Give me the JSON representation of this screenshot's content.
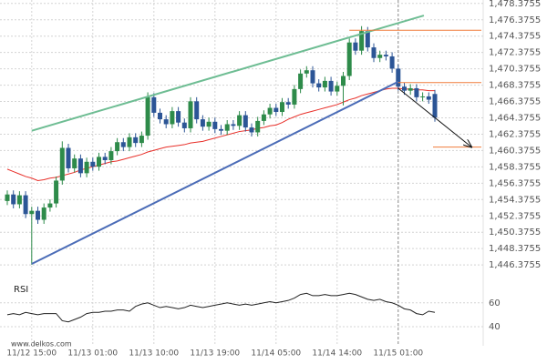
{
  "chart_data": {
    "type": "candlestick",
    "categories": [
      null,
      null,
      null,
      null,
      "11/12 15:00",
      null,
      null,
      null,
      null,
      null,
      null,
      null,
      null,
      null,
      "11/13 01:00",
      null,
      null,
      null,
      null,
      null,
      null,
      null,
      null,
      null,
      "11/13 10:00",
      null,
      null,
      null,
      null,
      null,
      null,
      null,
      null,
      null,
      "11/13 19:00",
      null,
      null,
      null,
      null,
      null,
      null,
      null,
      null,
      null,
      "11/14 05:00",
      null,
      null,
      null,
      null,
      null,
      null,
      null,
      null,
      null,
      "11/14 14:00",
      null,
      null,
      null,
      null,
      null,
      null,
      null,
      null,
      null,
      "11/15 01:00",
      null,
      null,
      null,
      null,
      null,
      null
    ],
    "open": [
      1454.2,
      1455.0,
      1453.8,
      1454.9,
      1452.6,
      1453.0,
      1451.9,
      1453.4,
      1453.9,
      1456.7,
      1460.7,
      1458.2,
      1459.4,
      1457.6,
      1459.0,
      1458.4,
      1459.6,
      1459.2,
      1460.3,
      1461.4,
      1460.8,
      1462.0,
      1461.3,
      1462.2,
      1466.9,
      1465.0,
      1464.2,
      1463.6,
      1465.2,
      1463.8,
      1463.1,
      1466.4,
      1464.2,
      1463.3,
      1463.9,
      1463.0,
      1462.8,
      1463.6,
      1463.4,
      1464.7,
      1463.2,
      1462.6,
      1464.0,
      1464.8,
      1465.6,
      1465.1,
      1466.3,
      1466.0,
      1467.9,
      1469.8,
      1470.2,
      1468.6,
      1468.1,
      1468.9,
      1467.6,
      1468.3,
      1469.5,
      1473.6,
      1472.6,
      1475.0,
      1473.0,
      1471.7,
      1472.1,
      1471.9,
      1470.4,
      1468.2,
      1467.7,
      1468.0,
      1466.9,
      1467.0,
      1467.3
    ],
    "high": [
      1455.5,
      1455.5,
      1455.4,
      1455.4,
      1453.5,
      1453.5,
      1453.9,
      1454.4,
      1457.2,
      1461.5,
      1461.2,
      1459.9,
      1459.9,
      1459.5,
      1459.5,
      1460.1,
      1460.1,
      1460.8,
      1461.9,
      1461.9,
      1462.5,
      1462.5,
      1462.7,
      1467.5,
      1467.4,
      1465.5,
      1464.7,
      1465.7,
      1465.7,
      1464.3,
      1466.9,
      1466.9,
      1464.7,
      1464.4,
      1464.4,
      1463.5,
      1464.1,
      1464.1,
      1465.2,
      1465.2,
      1463.7,
      1464.5,
      1465.3,
      1466.1,
      1466.1,
      1466.8,
      1466.8,
      1468.4,
      1470.3,
      1470.7,
      1470.7,
      1469.1,
      1469.4,
      1469.4,
      1468.8,
      1470.0,
      1474.1,
      1474.1,
      1475.6,
      1475.5,
      1473.5,
      1472.6,
      1472.6,
      1472.4,
      1470.9,
      1468.7,
      1468.5,
      1468.5,
      1467.5,
      1467.5,
      1467.8
    ],
    "low": [
      1453.7,
      1453.3,
      1453.3,
      1452.1,
      1446.4,
      1451.4,
      1451.4,
      1452.9,
      1453.4,
      1456.2,
      1457.7,
      1457.7,
      1457.1,
      1457.1,
      1457.9,
      1457.9,
      1458.7,
      1458.7,
      1459.8,
      1460.3,
      1460.3,
      1460.8,
      1460.8,
      1461.7,
      1464.5,
      1463.7,
      1463.1,
      1463.1,
      1463.3,
      1462.6,
      1462.6,
      1463.7,
      1462.8,
      1462.8,
      1462.5,
      1462.3,
      1462.3,
      1462.9,
      1462.9,
      1462.7,
      1462.1,
      1462.1,
      1463.5,
      1464.3,
      1464.6,
      1464.6,
      1465.5,
      1465.5,
      1467.4,
      1469.3,
      1468.1,
      1467.6,
      1467.6,
      1467.1,
      1467.1,
      1465.9,
      1469.0,
      1472.1,
      1472.1,
      1472.5,
      1471.2,
      1471.2,
      1471.4,
      1469.9,
      1467.7,
      1467.2,
      1467.2,
      1466.4,
      1466.4,
      1466.1,
      1463.9
    ],
    "close": [
      1455.0,
      1453.8,
      1454.9,
      1452.6,
      1453.0,
      1451.9,
      1453.4,
      1453.9,
      1456.7,
      1460.7,
      1458.2,
      1459.4,
      1457.6,
      1459.0,
      1458.4,
      1459.6,
      1459.2,
      1460.3,
      1461.4,
      1460.8,
      1462.0,
      1461.3,
      1462.2,
      1466.9,
      1465.0,
      1464.2,
      1463.6,
      1465.2,
      1463.8,
      1463.1,
      1466.4,
      1464.2,
      1463.3,
      1463.9,
      1463.0,
      1462.8,
      1463.6,
      1463.4,
      1464.7,
      1463.2,
      1462.6,
      1464.0,
      1464.8,
      1465.6,
      1465.1,
      1466.3,
      1466.0,
      1467.9,
      1469.8,
      1470.2,
      1468.6,
      1468.1,
      1468.9,
      1467.6,
      1468.3,
      1469.5,
      1473.6,
      1472.6,
      1475.0,
      1473.0,
      1471.7,
      1472.1,
      1471.9,
      1470.4,
      1468.2,
      1467.7,
      1468.0,
      1466.9,
      1467.0,
      1466.6,
      1464.4
    ],
    "up_color": "#2e8b4a",
    "down_color": "#2c5596",
    "moving_average": {
      "color": "#e8302a",
      "values": [
        1458.1,
        1457.8,
        1457.5,
        1457.2,
        1457.0,
        1456.7,
        1456.8,
        1457.0,
        1457.1,
        1457.3,
        1457.5,
        1457.7,
        1458.0,
        1458.2,
        1458.4,
        1458.6,
        1458.8,
        1459.0,
        1459.1,
        1459.3,
        1459.5,
        1459.7,
        1459.9,
        1460.2,
        1460.4,
        1460.6,
        1460.8,
        1460.9,
        1461.0,
        1461.1,
        1461.3,
        1461.4,
        1461.5,
        1461.7,
        1461.9,
        1462.1,
        1462.3,
        1462.5,
        1462.7,
        1462.8,
        1462.9,
        1463.1,
        1463.2,
        1463.4,
        1463.5,
        1463.8,
        1464.2,
        1464.5,
        1464.8,
        1465.0,
        1465.2,
        1465.4,
        1465.6,
        1465.8,
        1466.0,
        1466.3,
        1466.6,
        1466.8,
        1467.1,
        1467.3,
        1467.5,
        1467.7,
        1467.9,
        1468.0,
        1468.0,
        1467.9,
        1467.9,
        1467.8,
        1467.8,
        1467.7,
        1467.7
      ]
    },
    "ylim": [
      1445.5,
      1478.8
    ],
    "yticks": [
      {
        "value": 1446.3755,
        "label": "1,446.3755"
      },
      {
        "value": 1448.3755,
        "label": "1,448.3755"
      },
      {
        "value": 1450.3755,
        "label": "1,450.3755"
      },
      {
        "value": 1452.3755,
        "label": "1,452.3755"
      },
      {
        "value": 1454.3755,
        "label": "1,454.3755"
      },
      {
        "value": 1456.3755,
        "label": "1,456.3755"
      },
      {
        "value": 1458.3755,
        "label": "1,458.3755"
      },
      {
        "value": 1460.3755,
        "label": "1,460.3755"
      },
      {
        "value": 1462.3755,
        "label": "1,462.3755"
      },
      {
        "value": 1464.3755,
        "label": "1,464.3755"
      },
      {
        "value": 1466.3755,
        "label": "1,466.3755"
      },
      {
        "value": 1468.3755,
        "label": "1,468.3755"
      },
      {
        "value": 1470.3755,
        "label": "1,470.3755"
      },
      {
        "value": 1472.3755,
        "label": "1,472.3755"
      },
      {
        "value": 1474.3755,
        "label": "1,474.3755"
      },
      {
        "value": 1476.3755,
        "label": "1,476.3755"
      },
      {
        "value": 1478.3755,
        "label": "1,478.3755"
      }
    ],
    "grid": true,
    "trendlines": [
      {
        "color": "#6ebd93",
        "x": [
          4,
          68.2
        ],
        "y": [
          1462.8,
          1476.9
        ]
      },
      {
        "color": "#4b6cb7",
        "x": [
          4,
          64
        ],
        "y": [
          1446.5,
          1468.8
        ]
      }
    ],
    "levels": {
      "color": "#f07c3c",
      "from": [
        56,
        64,
        69.7
      ],
      "values": [
        1475.1,
        1468.7,
        1460.8
      ]
    },
    "arrow": {
      "color": "#111111",
      "x": [
        64,
        76
      ],
      "y": [
        1468.0,
        1460.8
      ]
    },
    "rsi": {
      "label": "RSI",
      "color": "#222222",
      "ylim": [
        24,
        85
      ],
      "yticks": [
        40,
        60
      ],
      "values": [
        50,
        51,
        50,
        52,
        51,
        50,
        51,
        51,
        51,
        45,
        44,
        46,
        48,
        51,
        52,
        52,
        53,
        53,
        54,
        54,
        53,
        57,
        59,
        60,
        58,
        56,
        57,
        56,
        55,
        56,
        58,
        57,
        56,
        57,
        58,
        59,
        60,
        59,
        58,
        59,
        58,
        59,
        60,
        61,
        60,
        61,
        62,
        64,
        67,
        68,
        66,
        66,
        67,
        66,
        66,
        67,
        68,
        67,
        65,
        63,
        62,
        63,
        61,
        60,
        58,
        55,
        54,
        51,
        50,
        53,
        52
      ]
    },
    "watermark": "www.delkos.com"
  }
}
